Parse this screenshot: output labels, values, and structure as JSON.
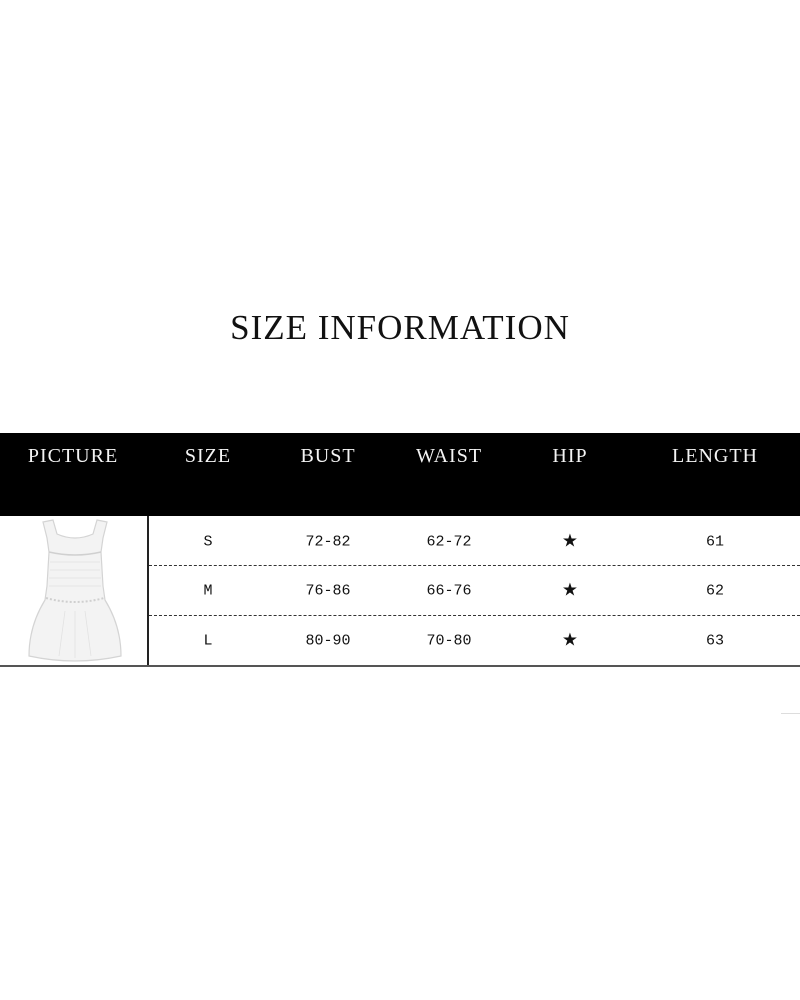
{
  "title": "SIZE INFORMATION",
  "table": {
    "headers": [
      "PICTURE",
      "SIZE",
      "BUST",
      "WAIST",
      "HIP",
      "LENGTH"
    ],
    "rows": [
      {
        "size": "S",
        "bust": "72-82",
        "waist": "62-72",
        "hip": "★",
        "length": "61"
      },
      {
        "size": "M",
        "bust": "76-86",
        "waist": "66-76",
        "hip": "★",
        "length": "62"
      },
      {
        "size": "L",
        "bust": "80-90",
        "waist": "70-80",
        "hip": "★",
        "length": "63"
      }
    ],
    "picture_icon": "white-smocked-dress-photo"
  },
  "colors": {
    "header_bg": "#000000",
    "header_text": "#f4f4f4",
    "text": "#111111"
  }
}
